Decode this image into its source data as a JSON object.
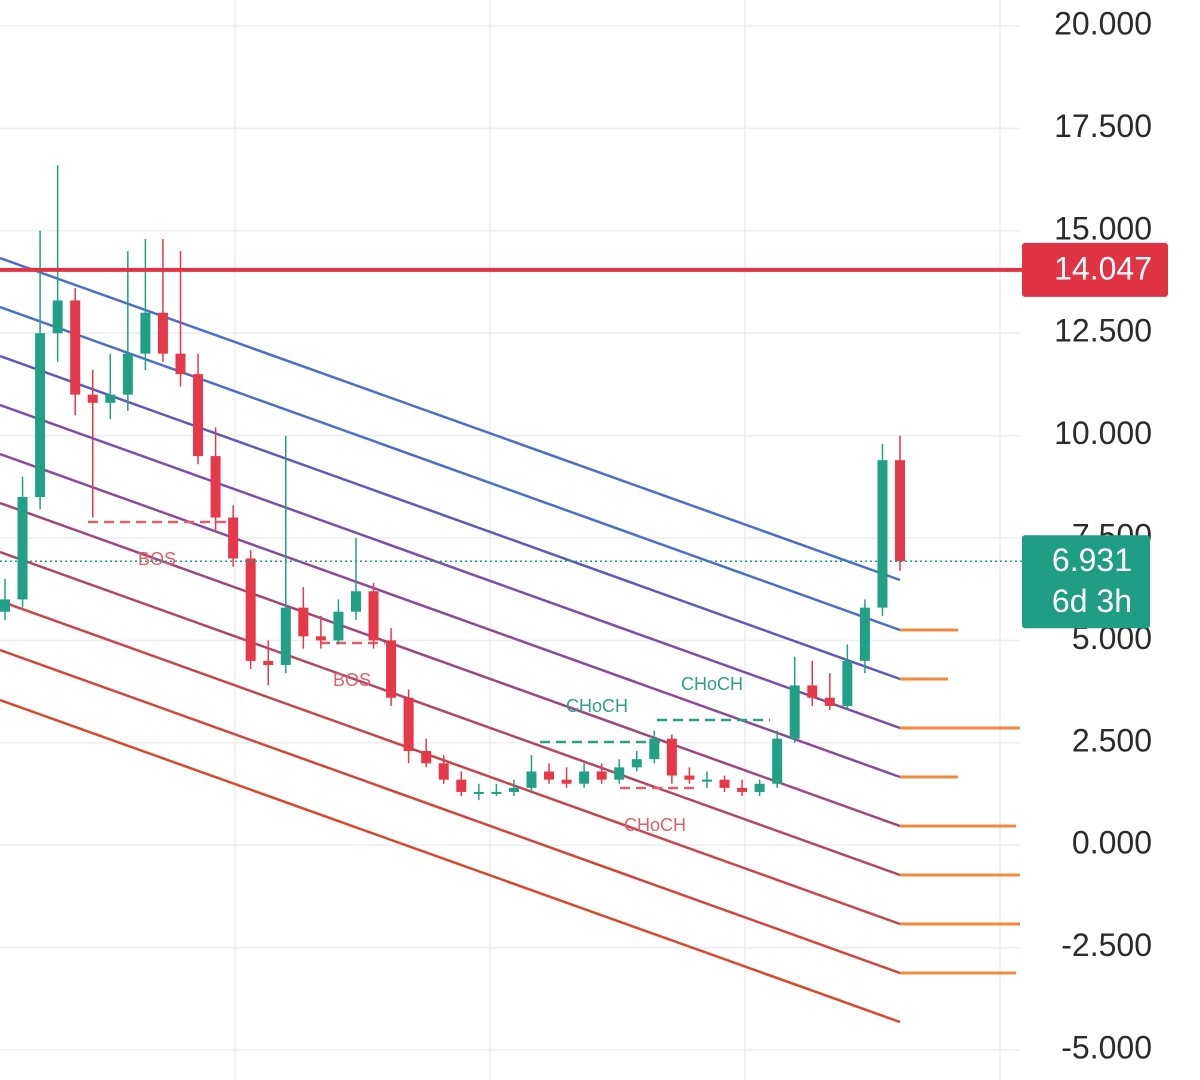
{
  "chart_data": {
    "type": "candlestick",
    "ylim": [
      -5,
      20
    ],
    "yticks": [
      {
        "value": 20,
        "label": "20.000"
      },
      {
        "value": 17.5,
        "label": "17.500"
      },
      {
        "value": 15,
        "label": "15.000"
      },
      {
        "value": 12.5,
        "label": "12.500"
      },
      {
        "value": 10,
        "label": "10.000"
      },
      {
        "value": 7.5,
        "label": "7.500"
      },
      {
        "value": 5,
        "label": "5.000"
      },
      {
        "value": 2.5,
        "label": "2.500"
      },
      {
        "value": 0,
        "label": "0.000"
      },
      {
        "value": -2.5,
        "label": "-2.500"
      },
      {
        "value": -5,
        "label": "-5.000"
      }
    ],
    "grid": true,
    "up_color": "#22a085",
    "down_color": "#e5394a",
    "open": [
      5.7,
      6.0,
      8.5,
      12.5,
      13.3,
      11.0,
      10.8,
      11.0,
      12.0,
      13.0,
      12.0,
      11.5,
      9.5,
      8.0,
      7.0,
      4.5,
      4.4,
      5.8,
      5.1,
      5.0,
      5.7,
      6.2,
      5.0,
      3.6,
      2.3,
      2.0,
      1.6,
      1.3,
      1.3,
      1.3,
      1.4,
      1.8,
      1.6,
      1.5,
      1.8,
      1.6,
      1.9,
      2.1,
      2.6,
      1.7,
      1.6,
      1.6,
      1.4,
      1.3,
      1.5,
      2.6,
      3.9,
      3.6,
      3.4,
      4.5,
      5.8,
      9.4
    ],
    "high": [
      6.5,
      9.0,
      15.0,
      16.6,
      13.6,
      11.6,
      12.0,
      14.5,
      14.8,
      14.8,
      14.5,
      12.0,
      10.2,
      8.3,
      7.2,
      5.0,
      10.0,
      6.3,
      5.6,
      6.0,
      7.5,
      6.4,
      5.3,
      3.8,
      2.6,
      2.2,
      1.8,
      1.5,
      1.5,
      1.6,
      2.2,
      2.0,
      1.9,
      2.0,
      2.0,
      2.1,
      2.3,
      2.8,
      2.7,
      1.9,
      1.8,
      1.7,
      1.6,
      1.6,
      2.8,
      4.6,
      4.5,
      4.2,
      4.9,
      6.0,
      9.8,
      10.0
    ],
    "low": [
      5.5,
      5.8,
      8.2,
      11.8,
      10.5,
      8.0,
      10.4,
      10.6,
      11.6,
      11.8,
      11.2,
      9.3,
      7.7,
      6.8,
      4.3,
      3.9,
      4.2,
      4.8,
      4.8,
      4.9,
      5.5,
      4.8,
      3.4,
      2.0,
      1.9,
      1.5,
      1.2,
      1.1,
      1.2,
      1.2,
      1.3,
      1.5,
      1.4,
      1.4,
      1.5,
      1.5,
      1.8,
      2.0,
      1.5,
      1.5,
      1.4,
      1.3,
      1.2,
      1.2,
      1.4,
      2.5,
      3.4,
      3.3,
      3.3,
      4.2,
      5.6,
      6.7
    ],
    "close": [
      6.0,
      8.5,
      12.5,
      13.3,
      11.0,
      10.8,
      11.0,
      12.0,
      13.0,
      12.0,
      11.5,
      9.5,
      8.0,
      7.0,
      4.5,
      4.4,
      5.8,
      5.1,
      5.0,
      5.7,
      6.2,
      5.0,
      3.6,
      2.3,
      2.0,
      1.6,
      1.3,
      1.3,
      1.3,
      1.4,
      1.8,
      1.6,
      1.5,
      1.8,
      1.6,
      1.9,
      2.1,
      2.6,
      1.7,
      1.6,
      1.6,
      1.4,
      1.3,
      1.5,
      2.6,
      3.9,
      3.6,
      3.4,
      4.5,
      5.8,
      9.4,
      6.931
    ],
    "resistance": {
      "value": 14.047,
      "label": "14.047",
      "color": "#e03445"
    },
    "last_price": {
      "value": 6.931,
      "label": "6.931",
      "countdown": "6d 3h",
      "color": "#1f9e83"
    },
    "annotations": [
      "BOS",
      "BOS",
      "CHoCH",
      "CHoCH",
      "CHoCH"
    ]
  }
}
